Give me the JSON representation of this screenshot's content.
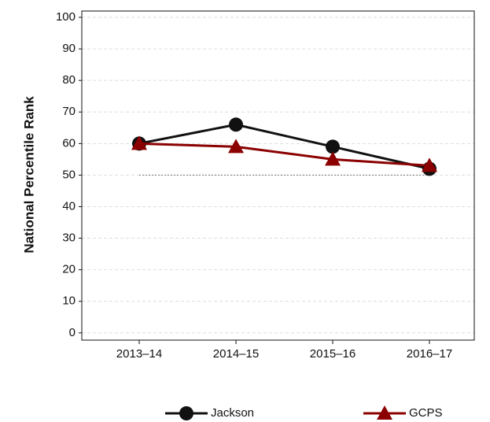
{
  "chart_data": {
    "type": "line",
    "y_label": "National Percentile Rank",
    "categories": [
      "2013–14",
      "2014–15",
      "2015–16",
      "2016–17"
    ],
    "series": [
      {
        "name": "Jackson",
        "color": "#111111",
        "marker": "circle",
        "values": [
          60,
          66,
          59,
          52
        ]
      },
      {
        "name": "GCPS",
        "color": "#8b0000",
        "marker": "triangle",
        "values": [
          60,
          59,
          55,
          53
        ]
      }
    ],
    "reference_line": 50,
    "ylim": [
      -2.3,
      102
    ],
    "yticks": [
      0,
      10,
      20,
      30,
      40,
      50,
      60,
      70,
      80,
      90,
      100
    ],
    "grid": true,
    "legend": "bottom"
  }
}
